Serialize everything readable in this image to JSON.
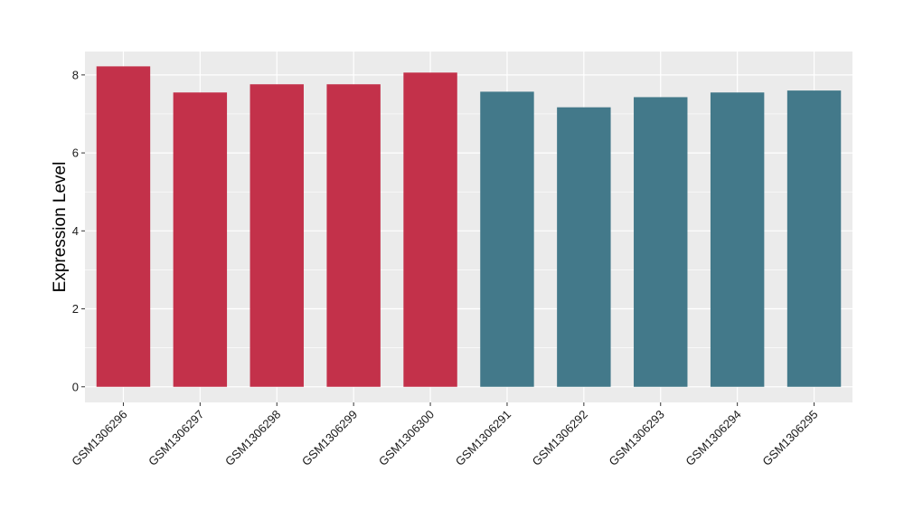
{
  "chart_data": {
    "type": "bar",
    "ylabel": "Expression Level",
    "xlabel": "",
    "title": "",
    "categories": [
      "GSM1306296",
      "GSM1306297",
      "GSM1306298",
      "GSM1306299",
      "GSM1306300",
      "GSM1306291",
      "GSM1306292",
      "GSM1306293",
      "GSM1306294",
      "GSM1306295"
    ],
    "values": [
      8.22,
      7.55,
      7.76,
      7.76,
      8.06,
      7.57,
      7.17,
      7.43,
      7.55,
      7.6
    ],
    "bar_colors": [
      "#c3314a",
      "#c3314a",
      "#c3314a",
      "#c3314a",
      "#c3314a",
      "#43798a",
      "#43798a",
      "#43798a",
      "#43798a",
      "#43798a"
    ],
    "ylim": [
      -0.4,
      8.6
    ],
    "yticks": [
      0,
      2,
      4,
      6,
      8
    ],
    "ytick_labels": [
      "0",
      "2",
      "4",
      "6",
      "8"
    ],
    "grid": true,
    "legend": false,
    "panel_background": "#ebebeb",
    "grid_color": "#ffffff"
  }
}
